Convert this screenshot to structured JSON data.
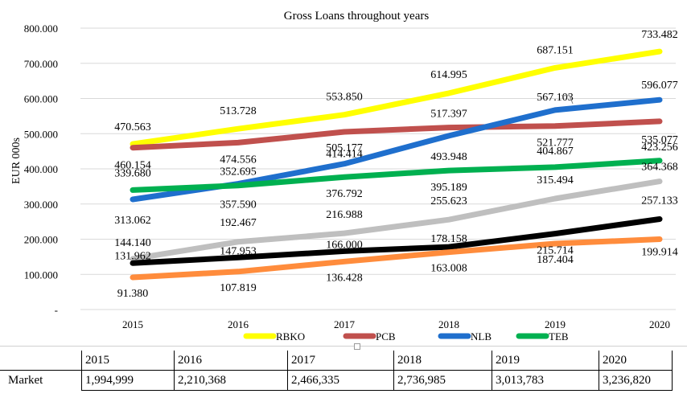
{
  "chart_data": {
    "type": "line",
    "title": "Gross Loans throughout years",
    "xlabel": "",
    "ylabel": "EUR 000s",
    "categories": [
      "2015",
      "2016",
      "2017",
      "2018",
      "2019",
      "2020"
    ],
    "ylim": [
      0,
      800000
    ],
    "y_ticks": [
      "-",
      "100.000",
      "200.000",
      "300.000",
      "400.000",
      "500.000",
      "600.000",
      "700.000",
      "800.000"
    ],
    "grid": true,
    "legend_position": "bottom",
    "series": [
      {
        "name": "RBKO",
        "color": "#ffff00",
        "values": [
          470563,
          513728,
          553850,
          614995,
          687151,
          733482
        ],
        "labels": [
          "470.563",
          "513.728",
          "553.850",
          "614.995",
          "687.151",
          "733.482"
        ]
      },
      {
        "name": "PCB",
        "color": "#c0504d",
        "values": [
          460154,
          474556,
          505177,
          517397,
          521777,
          535077
        ],
        "labels": [
          "460.154",
          "474.556",
          "505.177",
          "517.397",
          "521.777",
          "535.077"
        ]
      },
      {
        "name": "NLB",
        "color": "#1f6fcd",
        "values": [
          313062,
          357590,
          414414,
          493948,
          567103,
          596077
        ],
        "labels": [
          "313.062",
          "357.590",
          "414.414",
          "493.948",
          "567.103",
          "596.077"
        ]
      },
      {
        "name": "TEB",
        "color": "#00b050",
        "values": [
          339680,
          352695,
          376792,
          395189,
          404867,
          423256
        ],
        "labels": [
          "339.680",
          "352.695",
          "376.792",
          "395.189",
          "404.867",
          "423.256"
        ]
      },
      {
        "color": "#bfbfbf",
        "values": [
          144140,
          192467,
          216988,
          255623,
          315494,
          364368
        ],
        "labels": [
          "144.140",
          "192.467",
          "216.988",
          "255.623",
          "315.494",
          "364.368"
        ]
      },
      {
        "color": "#000000",
        "values": [
          131962,
          147953,
          166000,
          178158,
          215714,
          257133
        ],
        "labels": [
          "131.962",
          "147.953",
          "166.000",
          "178.158",
          "215.714",
          "257.133"
        ]
      },
      {
        "color": "#ff8c3c",
        "values": [
          91380,
          107819,
          136428,
          163008,
          187404,
          199914
        ],
        "labels": [
          "91.380",
          "107.819",
          "136.428",
          "163.008",
          "187.404",
          "199.914"
        ]
      }
    ]
  },
  "market_table": {
    "years": [
      "2015",
      "2016",
      "2017",
      "2018",
      "2019",
      "2020"
    ],
    "row_label": "Market",
    "values": [
      "1,994,999",
      "2,210,368",
      "2,466,335",
      "2,736,985",
      "3,013,783",
      "3,236,820"
    ]
  }
}
